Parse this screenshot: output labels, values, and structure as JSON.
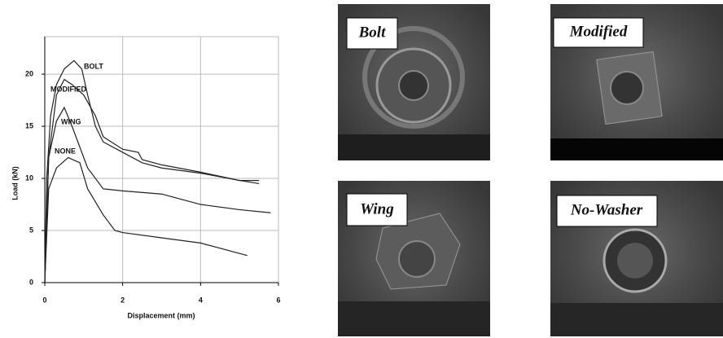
{
  "chart_data": {
    "type": "line",
    "xlabel": "Displacement (mm)",
    "ylabel": "Load (kN)",
    "xlim": [
      0,
      6
    ],
    "ylim": [
      0,
      23.6
    ],
    "xticks": [
      0,
      2,
      4,
      6
    ],
    "yticks": [
      0,
      5,
      10,
      15,
      20
    ],
    "grid": true,
    "series": [
      {
        "name": "BOLT",
        "color": "#222222",
        "x": [
          0,
          0.05,
          0.15,
          0.3,
          0.5,
          0.75,
          0.95,
          1.1,
          1.3,
          1.5,
          2,
          2.5,
          3,
          4,
          5,
          5.5
        ],
        "values": [
          0,
          10,
          16,
          19,
          20.5,
          21.3,
          20.5,
          18,
          15,
          13.5,
          12.5,
          11.5,
          11,
          10.5,
          9.8,
          9.5
        ]
      },
      {
        "name": "MODIFIED",
        "color": "#222222",
        "x": [
          0,
          0.1,
          0.3,
          0.5,
          0.7,
          1,
          1.3,
          1.5,
          2,
          2.4,
          2.5,
          3,
          4,
          5,
          5.5
        ],
        "values": [
          0,
          12,
          18,
          19.5,
          19,
          18,
          16,
          14,
          12.8,
          12.5,
          11.8,
          11.3,
          10.6,
          9.8,
          9.8
        ]
      },
      {
        "name": "WING",
        "color": "#222222",
        "x": [
          0,
          0.1,
          0.3,
          0.5,
          0.7,
          0.9,
          1.1,
          1.5,
          2,
          3,
          4,
          5,
          5.8
        ],
        "values": [
          0,
          12,
          15.5,
          16.8,
          15,
          13,
          11,
          9,
          8.8,
          8.5,
          7.5,
          7,
          6.7
        ]
      },
      {
        "name": "NONE",
        "color": "#222222",
        "x": [
          0,
          0.1,
          0.3,
          0.6,
          0.9,
          1.1,
          1.5,
          1.8,
          2,
          3,
          4,
          5,
          5.2
        ],
        "values": [
          0,
          9,
          11,
          12,
          11.5,
          9,
          6.5,
          5,
          4.8,
          4.3,
          3.8,
          2.8,
          2.6
        ]
      }
    ]
  },
  "photos": [
    {
      "label": "Bolt"
    },
    {
      "label": "Modified"
    },
    {
      "label": "Wing"
    },
    {
      "label": "No-Washer"
    }
  ]
}
